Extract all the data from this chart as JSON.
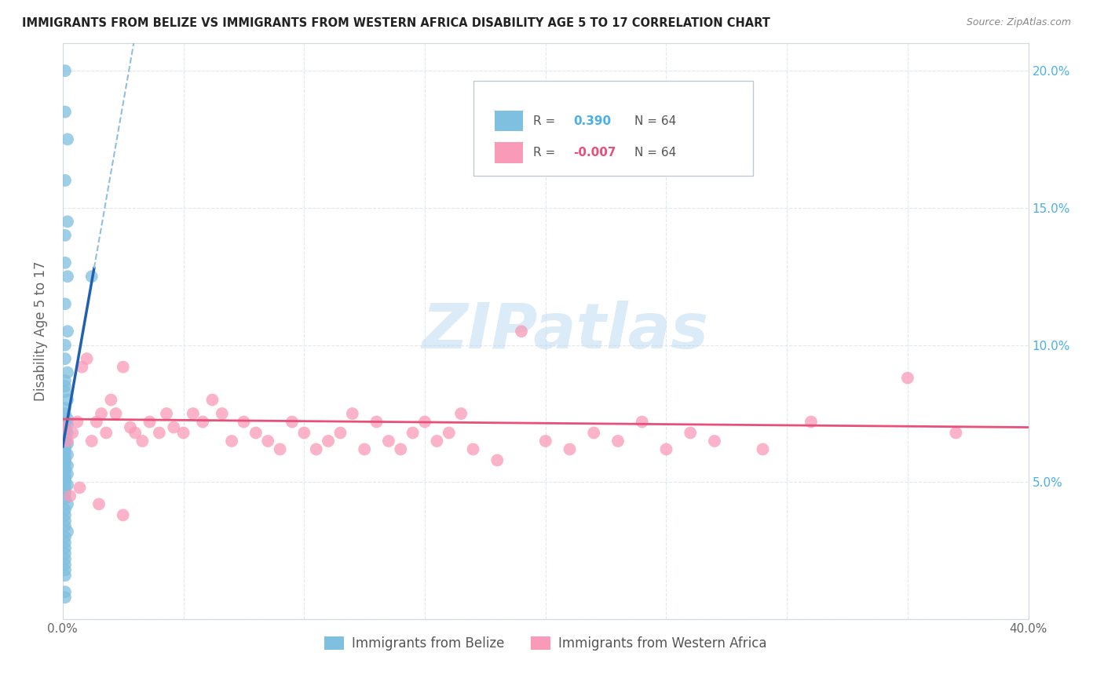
{
  "title": "IMMIGRANTS FROM BELIZE VS IMMIGRANTS FROM WESTERN AFRICA DISABILITY AGE 5 TO 17 CORRELATION CHART",
  "source": "Source: ZipAtlas.com",
  "ylabel": "Disability Age 5 to 17",
  "xlabel_belize": "Immigrants from Belize",
  "xlabel_africa": "Immigrants from Western Africa",
  "r_belize": 0.39,
  "r_africa": -0.007,
  "n_belize": 64,
  "n_africa": 64,
  "xlim": [
    0.0,
    0.4
  ],
  "ylim": [
    0.0,
    0.21
  ],
  "color_belize": "#7fbfdf",
  "color_africa": "#f99ab8",
  "color_belize_line": "#2060b0",
  "color_belize_dashed": "#90bfdf",
  "color_africa_line": "#e8507a",
  "watermark": "ZIPatlas",
  "belize_x": [
    0.001,
    0.001,
    0.002,
    0.001,
    0.002,
    0.001,
    0.001,
    0.002,
    0.001,
    0.002,
    0.001,
    0.001,
    0.002,
    0.001,
    0.001,
    0.001,
    0.002,
    0.001,
    0.001,
    0.002,
    0.001,
    0.002,
    0.001,
    0.001,
    0.002,
    0.001,
    0.001,
    0.001,
    0.002,
    0.001,
    0.001,
    0.001,
    0.002,
    0.001,
    0.001,
    0.001,
    0.002,
    0.001,
    0.001,
    0.002,
    0.001,
    0.001,
    0.001,
    0.002,
    0.001,
    0.001,
    0.001,
    0.002,
    0.001,
    0.001,
    0.001,
    0.001,
    0.002,
    0.001,
    0.001,
    0.001,
    0.001,
    0.001,
    0.001,
    0.012,
    0.001,
    0.001,
    0.001,
    0.001
  ],
  "belize_y": [
    0.2,
    0.185,
    0.175,
    0.16,
    0.145,
    0.14,
    0.13,
    0.125,
    0.115,
    0.105,
    0.1,
    0.095,
    0.09,
    0.087,
    0.085,
    0.083,
    0.08,
    0.077,
    0.075,
    0.073,
    0.072,
    0.071,
    0.07,
    0.069,
    0.068,
    0.067,
    0.066,
    0.065,
    0.064,
    0.063,
    0.062,
    0.061,
    0.06,
    0.059,
    0.058,
    0.057,
    0.056,
    0.055,
    0.054,
    0.053,
    0.052,
    0.051,
    0.05,
    0.049,
    0.048,
    0.046,
    0.044,
    0.042,
    0.04,
    0.038,
    0.036,
    0.034,
    0.032,
    0.03,
    0.028,
    0.026,
    0.024,
    0.022,
    0.02,
    0.125,
    0.018,
    0.016,
    0.01,
    0.008
  ],
  "africa_x": [
    0.001,
    0.002,
    0.004,
    0.006,
    0.008,
    0.01,
    0.012,
    0.014,
    0.016,
    0.018,
    0.02,
    0.022,
    0.025,
    0.028,
    0.03,
    0.033,
    0.036,
    0.04,
    0.043,
    0.046,
    0.05,
    0.054,
    0.058,
    0.062,
    0.066,
    0.07,
    0.075,
    0.08,
    0.085,
    0.09,
    0.095,
    0.1,
    0.105,
    0.11,
    0.115,
    0.12,
    0.125,
    0.13,
    0.135,
    0.14,
    0.145,
    0.15,
    0.155,
    0.16,
    0.165,
    0.17,
    0.18,
    0.19,
    0.2,
    0.21,
    0.22,
    0.23,
    0.24,
    0.25,
    0.26,
    0.27,
    0.29,
    0.31,
    0.35,
    0.37,
    0.003,
    0.007,
    0.015,
    0.025
  ],
  "africa_y": [
    0.07,
    0.065,
    0.068,
    0.072,
    0.092,
    0.095,
    0.065,
    0.072,
    0.075,
    0.068,
    0.08,
    0.075,
    0.092,
    0.07,
    0.068,
    0.065,
    0.072,
    0.068,
    0.075,
    0.07,
    0.068,
    0.075,
    0.072,
    0.08,
    0.075,
    0.065,
    0.072,
    0.068,
    0.065,
    0.062,
    0.072,
    0.068,
    0.062,
    0.065,
    0.068,
    0.075,
    0.062,
    0.072,
    0.065,
    0.062,
    0.068,
    0.072,
    0.065,
    0.068,
    0.075,
    0.062,
    0.058,
    0.105,
    0.065,
    0.062,
    0.068,
    0.065,
    0.072,
    0.062,
    0.068,
    0.065,
    0.062,
    0.072,
    0.088,
    0.068,
    0.045,
    0.048,
    0.042,
    0.038
  ],
  "trend_belize_x0": 0.0,
  "trend_belize_x_solid_end": 0.013,
  "trend_belize_x_dashed_end": 0.28,
  "trend_africa_x0": 0.0,
  "trend_africa_x1": 0.4
}
